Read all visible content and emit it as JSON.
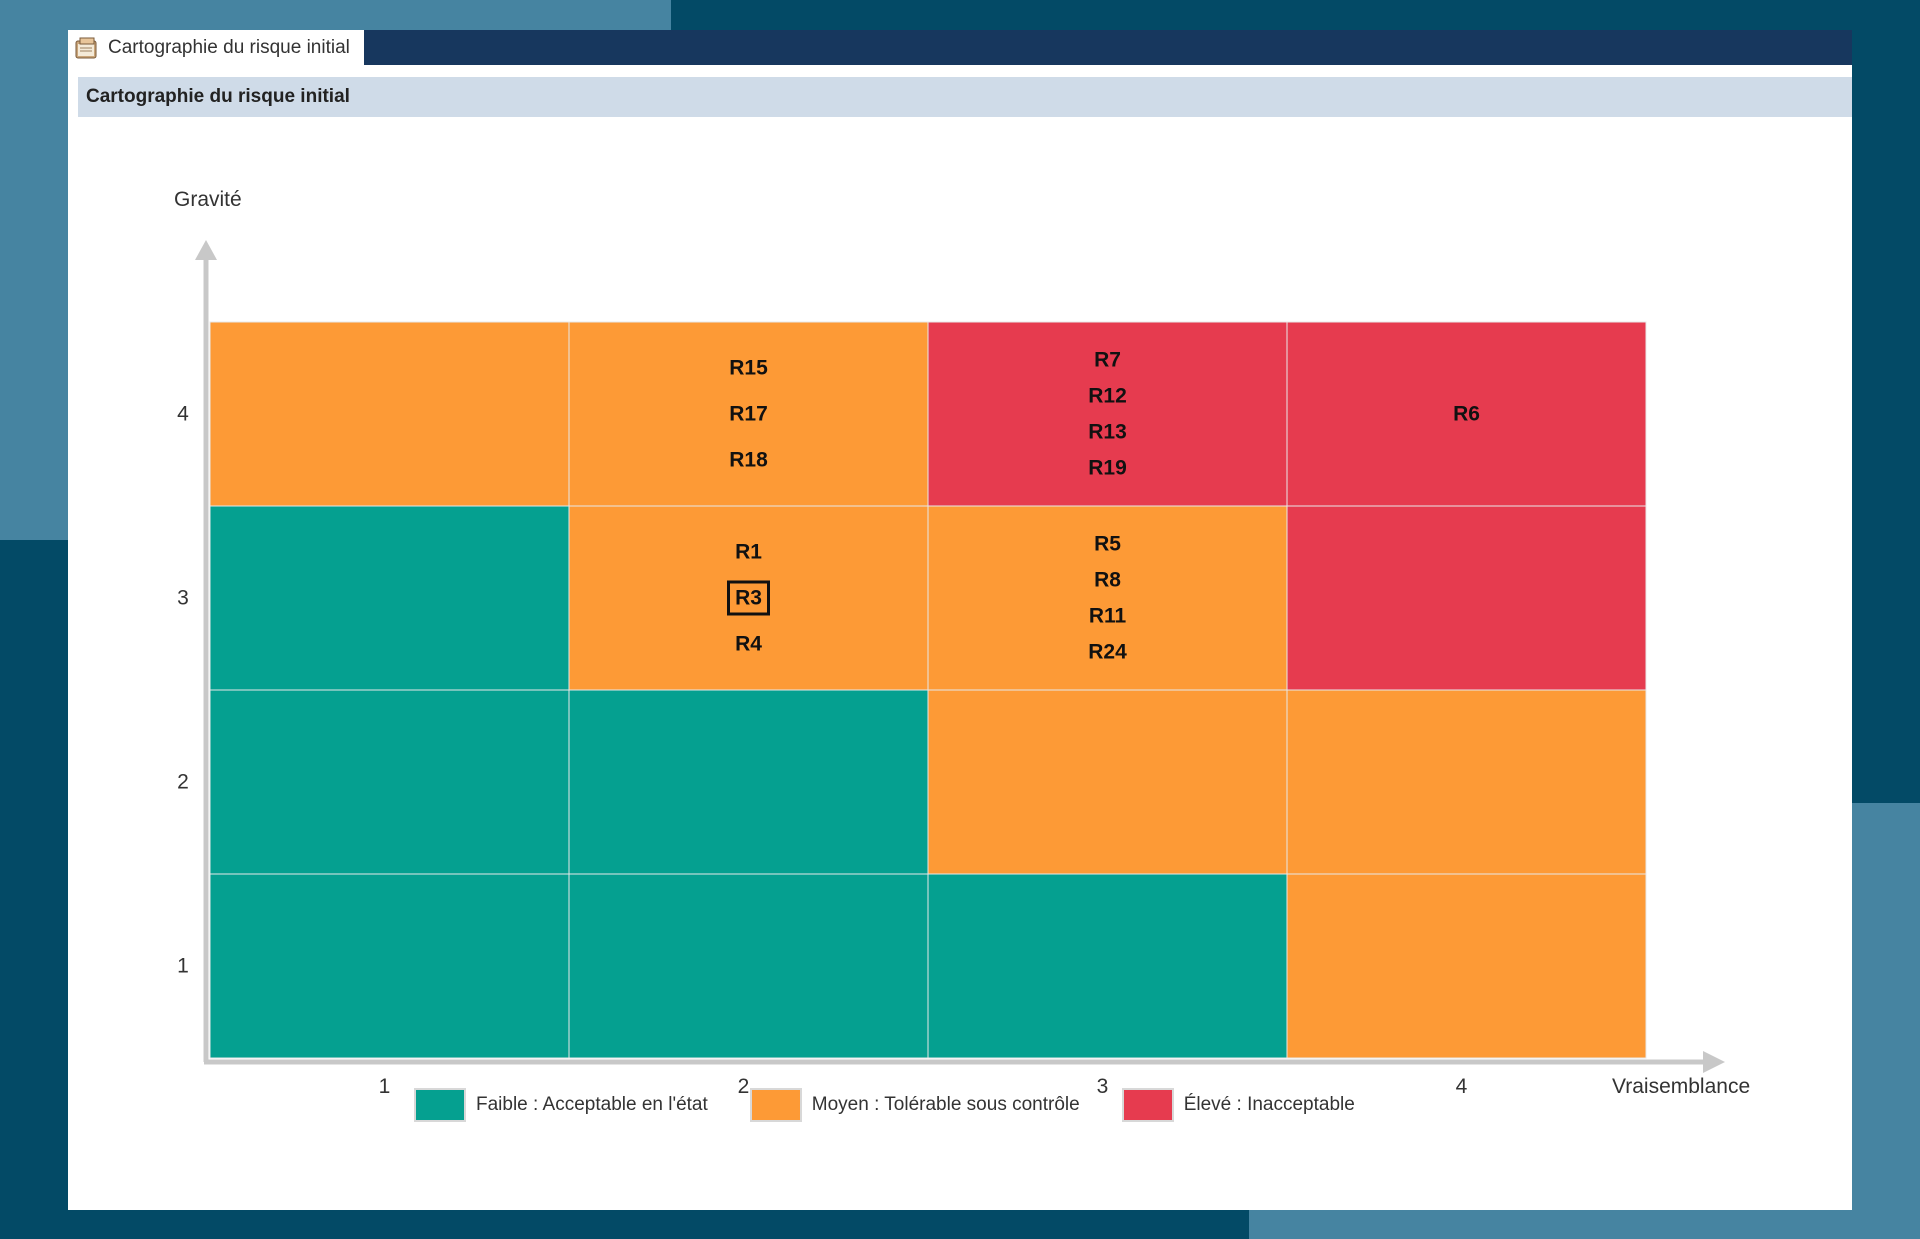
{
  "window": {
    "tab_title": "Cartographie du risque initial",
    "section_title": "Cartographie du risque initial"
  },
  "colors": {
    "low": "#05a090",
    "medium": "#fd9a36",
    "high": "#e63b4f",
    "axis": "#c8c8c8",
    "grid": "#e8e8e8"
  },
  "chart_data": {
    "type": "heatmap",
    "title": "",
    "xlabel": "Vraisemblance",
    "ylabel": "Gravité",
    "x_categories": [
      "1",
      "2",
      "3",
      "4"
    ],
    "y_categories": [
      "1",
      "2",
      "3",
      "4"
    ],
    "levels": [
      {
        "key": "low",
        "label": "Faible : Acceptable en l'état"
      },
      {
        "key": "medium",
        "label": "Moyen : Tolérable sous contrôle"
      },
      {
        "key": "high",
        "label": "Élevé : Inacceptable"
      }
    ],
    "cells": [
      {
        "x": 1,
        "y": 4,
        "level": "medium",
        "risks": []
      },
      {
        "x": 2,
        "y": 4,
        "level": "medium",
        "risks": [
          "R15",
          "R17",
          "R18"
        ]
      },
      {
        "x": 3,
        "y": 4,
        "level": "high",
        "risks": [
          "R7",
          "R12",
          "R13",
          "R19"
        ]
      },
      {
        "x": 4,
        "y": 4,
        "level": "high",
        "risks": [
          "R6"
        ]
      },
      {
        "x": 1,
        "y": 3,
        "level": "low",
        "risks": []
      },
      {
        "x": 2,
        "y": 3,
        "level": "medium",
        "risks": [
          "R1",
          "R3",
          "R4"
        ]
      },
      {
        "x": 3,
        "y": 3,
        "level": "medium",
        "risks": [
          "R5",
          "R8",
          "R11",
          "R24"
        ]
      },
      {
        "x": 4,
        "y": 3,
        "level": "high",
        "risks": []
      },
      {
        "x": 1,
        "y": 2,
        "level": "low",
        "risks": []
      },
      {
        "x": 2,
        "y": 2,
        "level": "low",
        "risks": []
      },
      {
        "x": 3,
        "y": 2,
        "level": "medium",
        "risks": []
      },
      {
        "x": 4,
        "y": 2,
        "level": "medium",
        "risks": []
      },
      {
        "x": 1,
        "y": 1,
        "level": "low",
        "risks": []
      },
      {
        "x": 2,
        "y": 1,
        "level": "low",
        "risks": []
      },
      {
        "x": 3,
        "y": 1,
        "level": "low",
        "risks": []
      },
      {
        "x": 4,
        "y": 1,
        "level": "medium",
        "risks": []
      }
    ],
    "highlighted_risk": "R3",
    "legend_position": "bottom"
  }
}
